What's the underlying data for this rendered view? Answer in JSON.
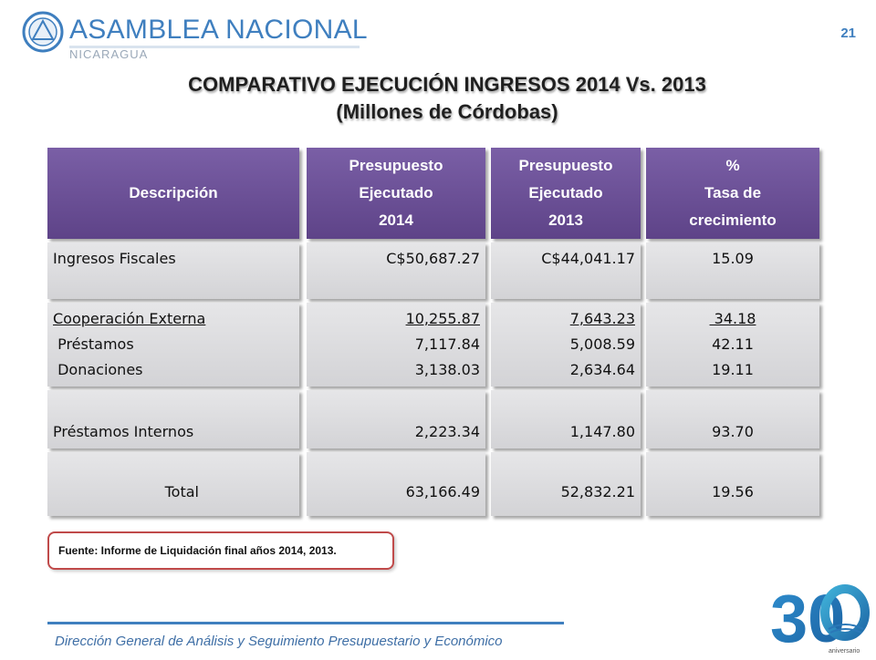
{
  "header": {
    "org_name": "ASAMBLEA NACIONAL",
    "org_country": "NICARAGUA",
    "page_number": "21"
  },
  "title": {
    "line1": "COMPARATIVO EJECUCIÓN  INGRESOS 2014 Vs. 2013",
    "line2": "(Millones de Córdobas)"
  },
  "table": {
    "headers": {
      "desc": "Descripción",
      "p2014_l1": "Presupuesto",
      "p2014_l2": "Ejecutado",
      "p2014_l3": "2014",
      "p2013_l1": "Presupuesto",
      "p2013_l2": "Ejecutado",
      "p2013_l3": "2013",
      "rate_l1": "%",
      "rate_l2": "Tasa de",
      "rate_l3": "crecimiento"
    },
    "rows": {
      "fiscales": {
        "desc": "Ingresos  Fiscales",
        "v2014": "C$50,687.27",
        "v2013": "C$44,041.17",
        "rate": "15.09"
      },
      "coop": {
        "desc_l1": "Cooperación Externa",
        "desc_l2": " Préstamos",
        "desc_l3": " Donaciones",
        "v2014_l1": "10,255.87",
        "v2014_l2": "7,117.84",
        "v2014_l3": "3,138.03",
        "v2013_l1": "7,643.23",
        "v2013_l2": "5,008.59",
        "v2013_l3": "2,634.64",
        "rate_l1": " 34.18",
        "rate_l2": "42.11",
        "rate_l3": "19.11"
      },
      "internos": {
        "desc": "Préstamos Internos",
        "v2014": "2,223.34",
        "v2013": "1,147.80",
        "rate": "93.70"
      },
      "total": {
        "desc": "Total",
        "v2014": "63,166.49",
        "v2013": "52,832.21",
        "rate": "19.56"
      }
    }
  },
  "source_note": "Fuente: Informe de Liquidación final años 2014, 2013.",
  "footer": {
    "text": "Dirección General de Análisis y Seguimiento Presupuestario y Económico"
  },
  "anniversary": {
    "number": "30",
    "label": "aniversario"
  },
  "colors": {
    "header_purple": "#6a4f96",
    "brand_blue": "#3f7fbf",
    "cell_gray": "#dcdcdf",
    "source_border": "#c04a4a"
  }
}
